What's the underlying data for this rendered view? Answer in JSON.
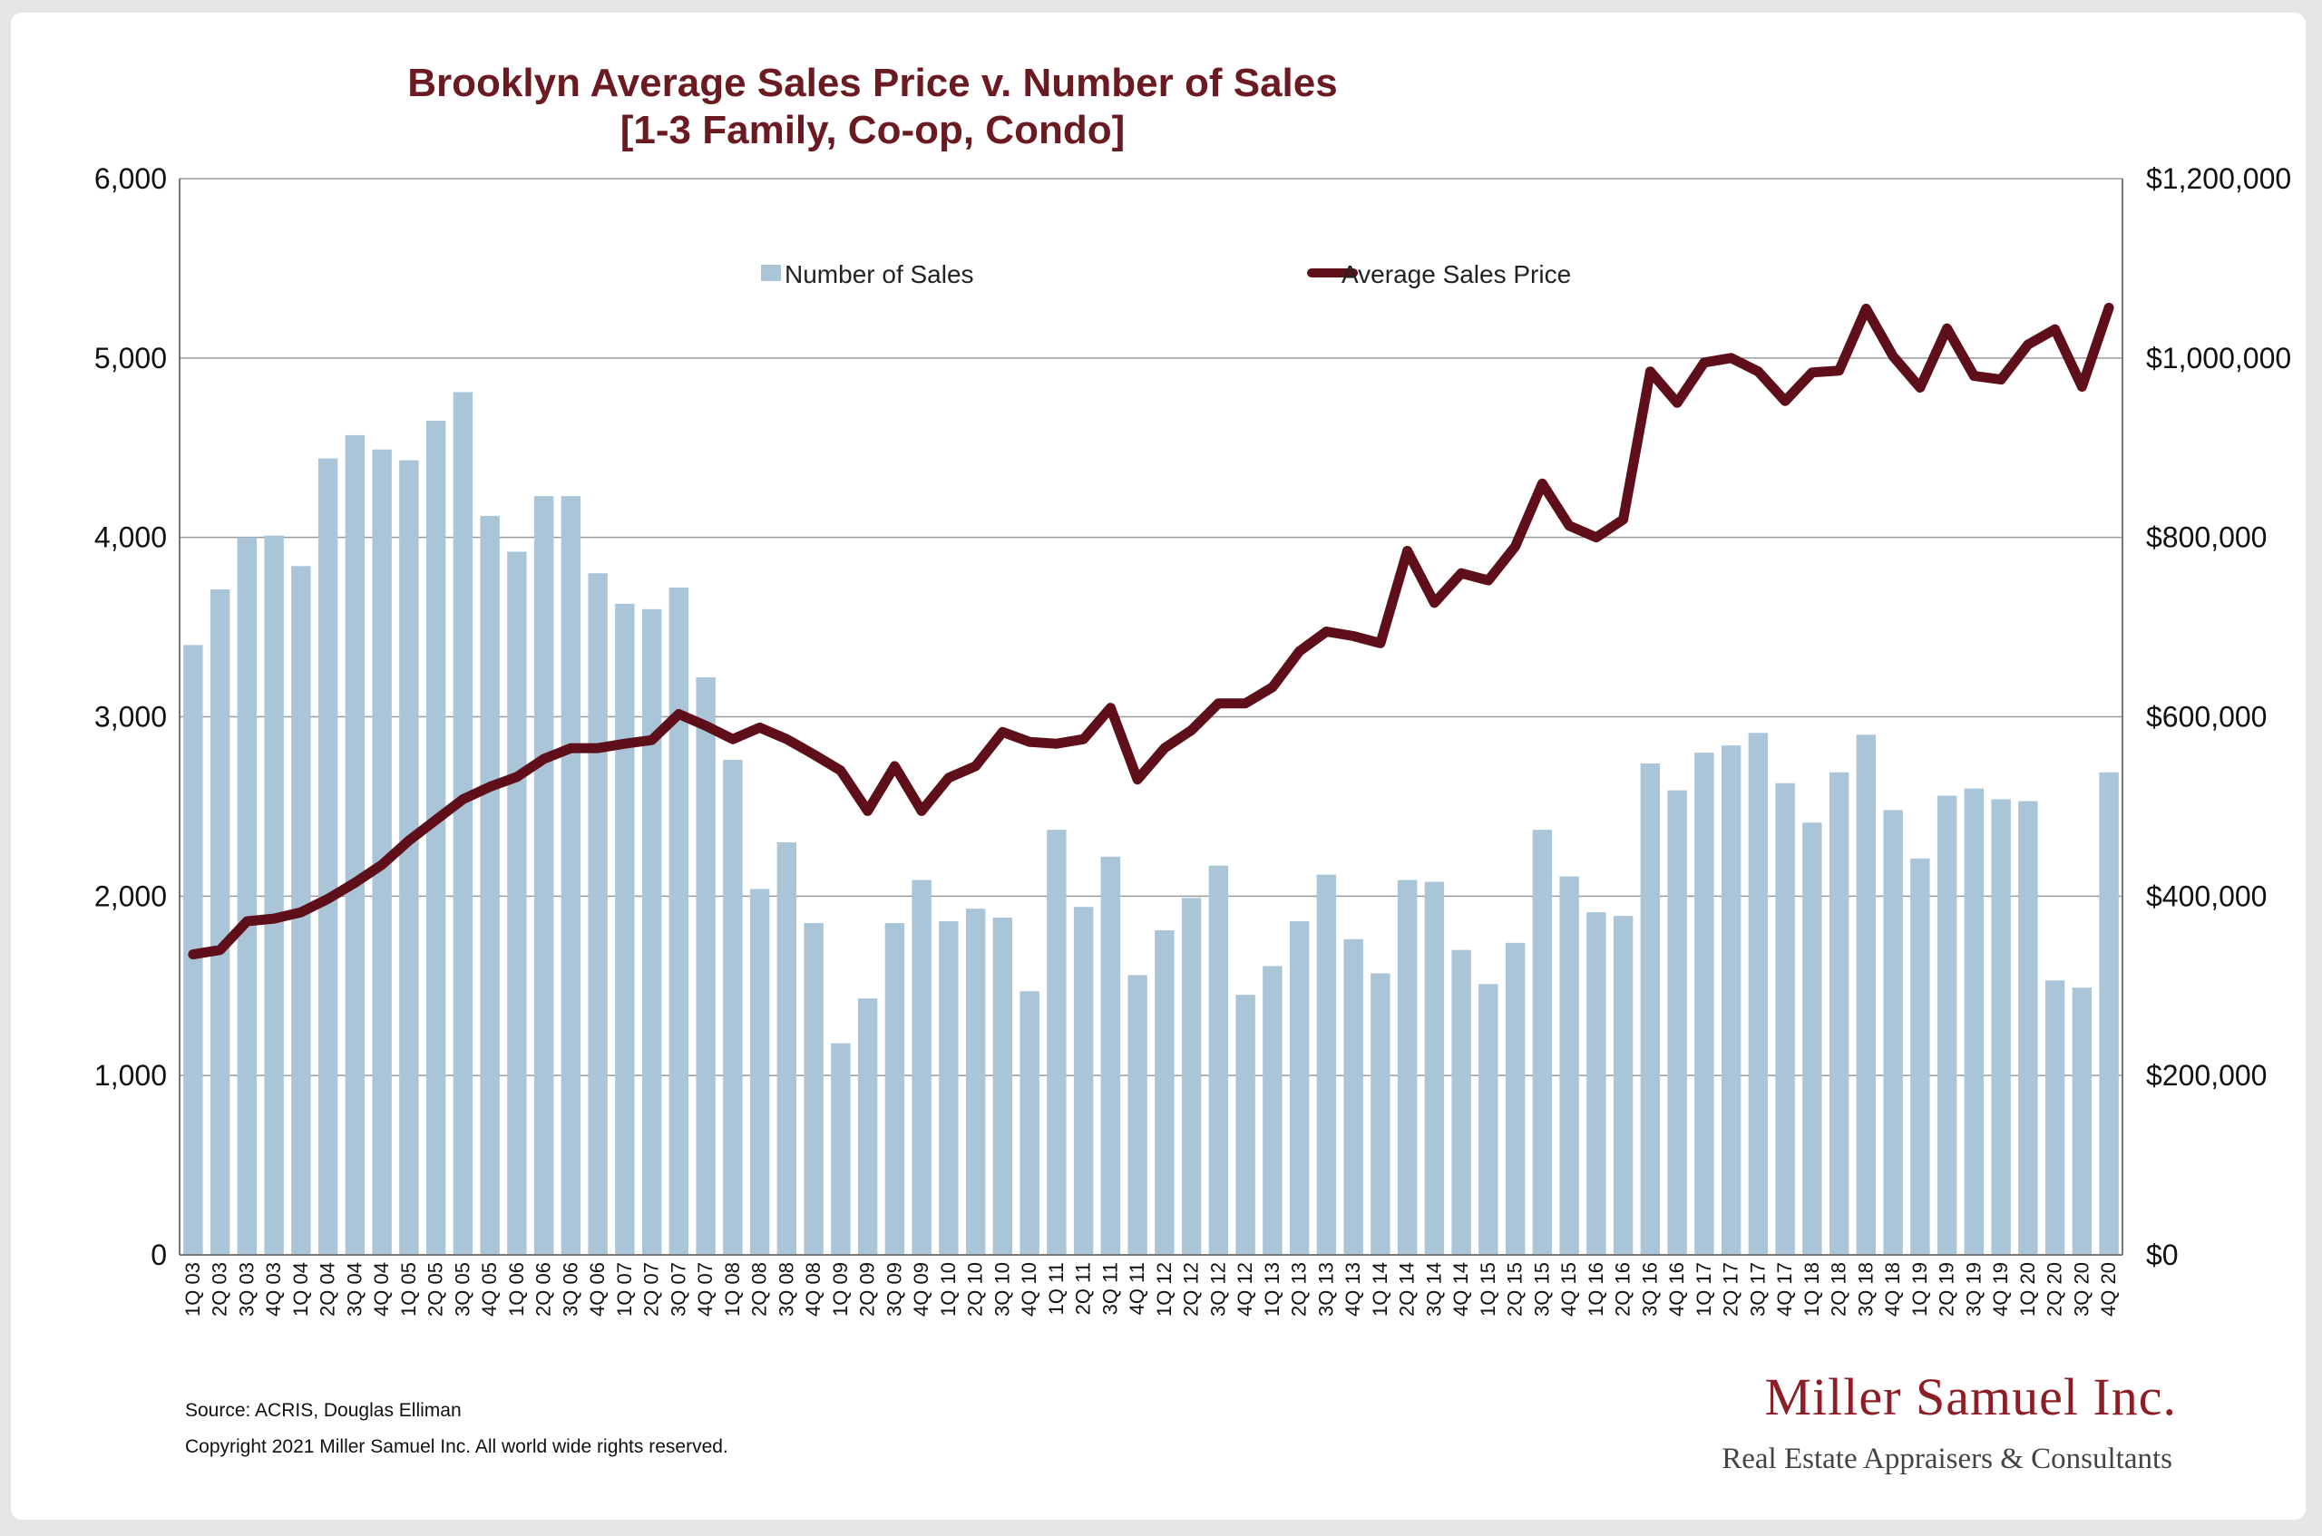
{
  "chart_data": {
    "type": "bar",
    "title": "Brooklyn Average Sales Price v. Number of Sales",
    "subtitle": "[1-3 Family, Co-op, Condo]",
    "categories": [
      "1Q 03",
      "2Q 03",
      "3Q 03",
      "4Q 03",
      "1Q 04",
      "2Q 04",
      "3Q 04",
      "4Q 04",
      "1Q 05",
      "2Q 05",
      "3Q 05",
      "4Q 05",
      "1Q 06",
      "2Q 06",
      "3Q 06",
      "4Q 06",
      "1Q 07",
      "2Q 07",
      "3Q 07",
      "4Q 07",
      "1Q 08",
      "2Q 08",
      "3Q 08",
      "4Q 08",
      "1Q 09",
      "2Q 09",
      "3Q 09",
      "4Q 09",
      "1Q 10",
      "2Q 10",
      "3Q 10",
      "4Q 10",
      "1Q 11",
      "2Q 11",
      "3Q 11",
      "4Q 11",
      "1Q 12",
      "2Q 12",
      "3Q 12",
      "4Q 12",
      "1Q 13",
      "2Q 13",
      "3Q 13",
      "4Q 13",
      "1Q 14",
      "2Q 14",
      "3Q 14",
      "4Q 14",
      "1Q 15",
      "2Q 15",
      "3Q 15",
      "4Q 15",
      "1Q 16",
      "2Q 16",
      "3Q 16",
      "4Q 16",
      "1Q 17",
      "2Q 17",
      "3Q 17",
      "4Q 17",
      "1Q 18",
      "2Q 18",
      "3Q 18",
      "4Q 18",
      "1Q 19",
      "2Q 19",
      "3Q 19",
      "4Q 19",
      "1Q 20",
      "2Q 20",
      "3Q 20",
      "4Q 20"
    ],
    "series": [
      {
        "name": "Number of Sales",
        "type": "bar",
        "axis": "left",
        "color": "#aac4d8",
        "values": [
          3400,
          3710,
          4000,
          4010,
          3840,
          4440,
          4570,
          4490,
          4430,
          4650,
          4810,
          4120,
          3920,
          4230,
          4230,
          3800,
          3630,
          3600,
          3720,
          3220,
          2760,
          2040,
          2300,
          1850,
          1180,
          1430,
          1850,
          2090,
          1860,
          1930,
          1880,
          1470,
          2370,
          1940,
          2220,
          1560,
          1810,
          1990,
          2170,
          1450,
          1610,
          1860,
          2120,
          1760,
          1570,
          2090,
          2080,
          1700,
          1510,
          1740,
          2370,
          2110,
          1910,
          1890,
          2740,
          2590,
          2800,
          2840,
          2910,
          2630,
          2410,
          2690,
          2900,
          2480,
          2210,
          2560,
          2600,
          2540,
          2530,
          1530,
          1490,
          2690
        ]
      },
      {
        "name": "Average Sales Price",
        "type": "line",
        "axis": "right",
        "color": "#5e0f1a",
        "values": [
          335000,
          340000,
          372000,
          375000,
          382000,
          397000,
          415000,
          435000,
          462000,
          485000,
          508000,
          522000,
          533000,
          553000,
          565000,
          565000,
          570000,
          574000,
          603000,
          590000,
          575000,
          588000,
          575000,
          558000,
          540000,
          495000,
          545000,
          495000,
          532000,
          545000,
          583000,
          572000,
          570000,
          575000,
          610000,
          530000,
          565000,
          585000,
          615000,
          615000,
          633000,
          673000,
          695000,
          690000,
          682000,
          785000,
          727000,
          760000,
          752000,
          790000,
          860000,
          813000,
          800000,
          820000,
          985000,
          950000,
          995000,
          1000000,
          985000,
          952000,
          984000,
          986000,
          1055000,
          1002000,
          967000,
          1033000,
          980000,
          976000,
          1015000,
          1032000,
          968000,
          1056000
        ]
      }
    ],
    "ylim_left": [
      0,
      6000
    ],
    "ylim_right": [
      0,
      1200000
    ],
    "yticks_left": [
      "0",
      "1,000",
      "2,000",
      "3,000",
      "4,000",
      "5,000",
      "6,000"
    ],
    "yticks_right": [
      "$0",
      "$200,000",
      "$400,000",
      "$600,000",
      "$800,000",
      "$1,000,000",
      "$1,200,000"
    ],
    "grid": true,
    "legend_position": "top-center"
  },
  "footer": {
    "source": "Source: ACRIS, Douglas Elliman",
    "copyright": "Copyright 2021 Miller Samuel Inc.  All world wide rights reserved."
  },
  "logo": {
    "name": "Miller Samuel Inc.",
    "tagline": "Real Estate Appraisers & Consultants"
  }
}
